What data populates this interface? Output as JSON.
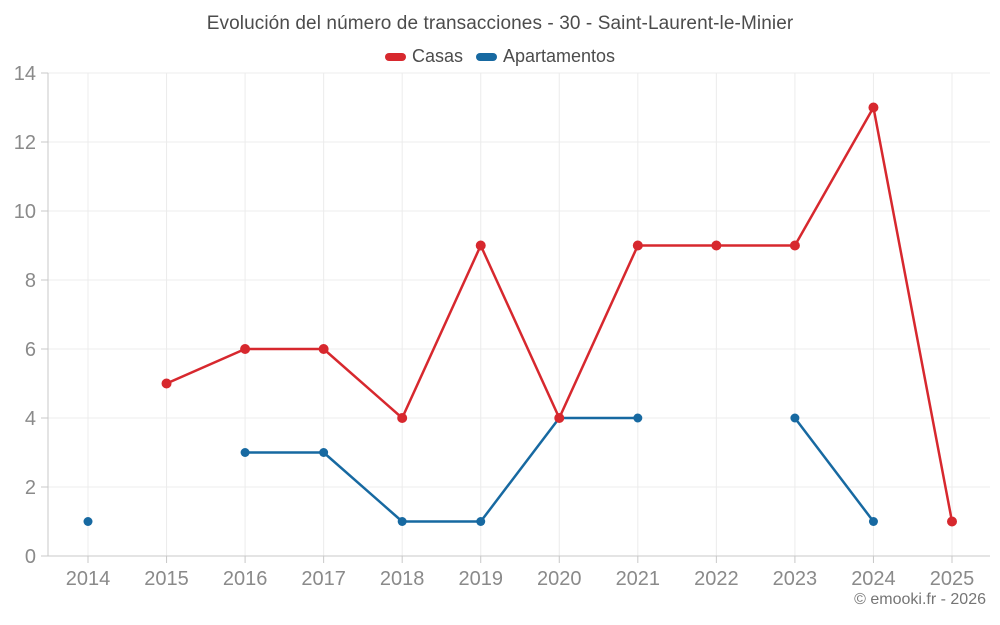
{
  "title": "Evolución del número de transacciones - 30 - Saint-Laurent-le-Minier",
  "legend": [
    {
      "label": "Casas",
      "color": "#d7282e"
    },
    {
      "label": "Apartamentos",
      "color": "#1769a1"
    }
  ],
  "footer": "© emooki.fr - 2026",
  "colors": {
    "grid": "#ececec",
    "axis": "#c8c8c8",
    "tick_label": "#8a8a8a",
    "title_text": "#4c4c4c",
    "footer_text": "#757575"
  },
  "chart_data": {
    "type": "line",
    "title": "Evolución del número de transacciones - 30 - Saint-Laurent-le-Minier",
    "categories": [
      2014,
      2015,
      2016,
      2017,
      2018,
      2019,
      2020,
      2021,
      2022,
      2023,
      2024,
      2025
    ],
    "series": [
      {
        "name": "Casas",
        "color": "#d7282e",
        "values": [
          null,
          5,
          6,
          6,
          4,
          9,
          4,
          9,
          9,
          9,
          13,
          1
        ]
      },
      {
        "name": "Apartamentos",
        "color": "#1769a1",
        "values": [
          1,
          null,
          3,
          3,
          1,
          1,
          4,
          4,
          null,
          4,
          1,
          null
        ]
      }
    ],
    "xlabel": "",
    "ylabel": "",
    "ylim": [
      0,
      14
    ],
    "yticks": [
      0,
      2,
      4,
      6,
      8,
      10,
      12,
      14
    ],
    "grid": true,
    "legend_position": "top",
    "annotation": "© emooki.fr - 2026"
  }
}
